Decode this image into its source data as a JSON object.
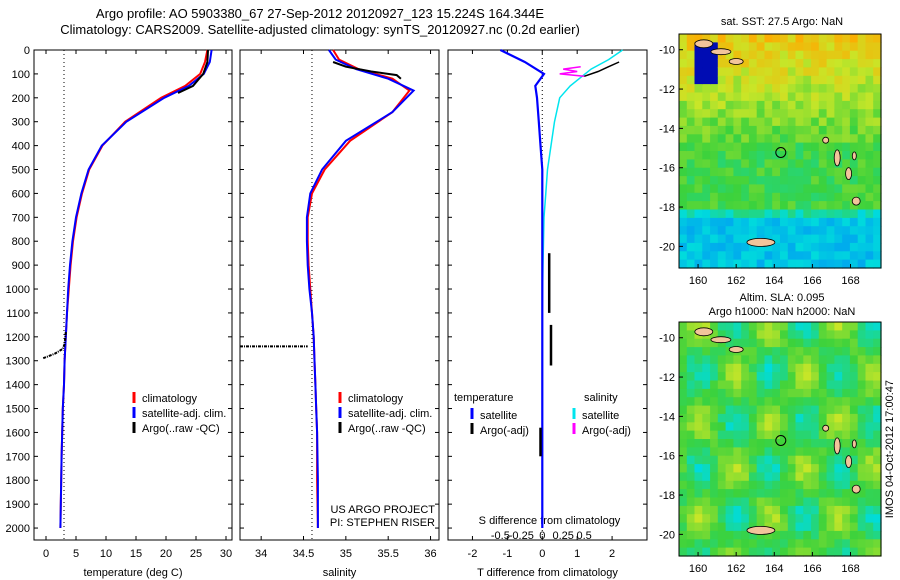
{
  "header": {
    "line1": "Argo profile: AO 5903380_67 27-Sep-2012 20120927_123 15.224S 164.344E",
    "line2": "Climatology: CARS2009. Satellite-adjusted climatology: synTS_20120927.nc (0.2d earlier)"
  },
  "colors": {
    "climatology": "#ff0000",
    "satellite": "#0000ff",
    "argo": "#000000",
    "sal_satellite": "#00e5ee",
    "sal_argo": "#ff00ff"
  },
  "depth_axis": {
    "ticks": [
      0,
      100,
      200,
      300,
      400,
      500,
      600,
      700,
      800,
      900,
      1000,
      1100,
      1200,
      1300,
      1400,
      1500,
      1600,
      1700,
      1800,
      1900,
      2000
    ]
  },
  "chart_data": [
    {
      "type": "line",
      "panel": "temperature",
      "xlabel": "temperature (deg C)",
      "xlim": [
        -2,
        31
      ],
      "ylim": [
        2050,
        0
      ],
      "xticks": [
        0,
        5,
        10,
        15,
        20,
        25,
        30
      ],
      "legend": [
        "climatology",
        "satellite-adj. clim.",
        "Argo(..raw -QC)"
      ],
      "series": [
        {
          "name": "climatology",
          "x": [
            26.9,
            26.5,
            25.7,
            23.2,
            19.2,
            13.2,
            9.4,
            7.2,
            6.0,
            5.1,
            4.5,
            4.1,
            3.8,
            3.5,
            3.3,
            3.1,
            3.0,
            2.8,
            2.7,
            2.6,
            2.5,
            2.4
          ],
          "y": [
            0,
            50,
            100,
            150,
            200,
            300,
            400,
            500,
            600,
            700,
            800,
            900,
            1000,
            1100,
            1200,
            1300,
            1400,
            1500,
            1600,
            1700,
            1850,
            2000
          ]
        },
        {
          "name": "satellite-adj. clim.",
          "x": [
            27.6,
            27.3,
            26.3,
            23.8,
            19.7,
            13.4,
            9.3,
            7.1,
            5.9,
            5.0,
            4.4,
            4.0,
            3.7,
            3.5,
            3.3,
            3.1,
            3.0,
            2.8,
            2.7,
            2.6,
            2.5,
            2.4
          ],
          "y": [
            0,
            50,
            100,
            150,
            200,
            300,
            400,
            500,
            600,
            700,
            800,
            900,
            1000,
            1100,
            1200,
            1300,
            1400,
            1500,
            1600,
            1700,
            1850,
            2000
          ]
        },
        {
          "name": "Argo(..raw -QC)",
          "x": [
            27.0,
            26.9,
            26.2,
            24.5,
            22.0
          ],
          "y": [
            0,
            50,
            100,
            150,
            180
          ]
        },
        {
          "name": "Argo dotted",
          "x": [
            3.3,
            3.1,
            2.8,
            1.5,
            -0.5
          ],
          "y": [
            1180,
            1230,
            1250,
            1270,
            1290
          ]
        }
      ],
      "reference_x": 3.0
    },
    {
      "type": "line",
      "panel": "salinity",
      "xlabel": "salinity",
      "xlim": [
        33.75,
        36.1
      ],
      "ylim": [
        2050,
        0
      ],
      "xticks": [
        34,
        34.5,
        35,
        35.5,
        36
      ],
      "legend": [
        "climatology",
        "satellite-adj. clim.",
        "Argo(..raw -QC)"
      ],
      "notes": [
        "US ARGO PROJECT",
        "PI: STEPHEN RISER"
      ],
      "series": [
        {
          "name": "climatology",
          "x": [
            34.85,
            34.92,
            35.15,
            35.55,
            35.75,
            35.55,
            35.05,
            34.75,
            34.6,
            34.55,
            34.55,
            34.56,
            34.58,
            34.6,
            34.62,
            34.63,
            34.64,
            34.65,
            34.66,
            34.66,
            34.67
          ],
          "y": [
            0,
            40,
            80,
            120,
            170,
            260,
            380,
            500,
            600,
            700,
            800,
            900,
            1000,
            1100,
            1200,
            1300,
            1400,
            1500,
            1600,
            1800,
            2000
          ]
        },
        {
          "name": "satellite-adj. clim.",
          "x": [
            34.8,
            34.88,
            35.12,
            35.5,
            35.8,
            35.55,
            35.0,
            34.72,
            34.58,
            34.54,
            34.54,
            34.55,
            34.57,
            34.6,
            34.62,
            34.63,
            34.64,
            34.65,
            34.66,
            34.67,
            34.67
          ],
          "y": [
            0,
            40,
            80,
            120,
            170,
            260,
            380,
            500,
            600,
            700,
            800,
            900,
            1000,
            1100,
            1200,
            1300,
            1400,
            1500,
            1600,
            1800,
            2000
          ]
        },
        {
          "name": "Argo(..raw -QC)",
          "x": [
            34.85,
            35.0,
            35.3,
            35.6,
            35.65
          ],
          "y": [
            50,
            70,
            90,
            105,
            120
          ]
        },
        {
          "name": "Argo dotted",
          "x": [
            33.75,
            34.0,
            34.3,
            34.55
          ],
          "y": [
            1240,
            1240,
            1240,
            1240
          ]
        }
      ],
      "reference_x": 34.6
    },
    {
      "type": "line",
      "panel": "difference",
      "xlabel": "T difference from climatology",
      "xlabel2": "S difference from climatology",
      "xlim": [
        -2.7,
        3.0
      ],
      "ylim": [
        2050,
        0
      ],
      "xticks": [
        -2,
        -1,
        0,
        1,
        2
      ],
      "s_ticks": [
        "-0.5",
        "-0.25",
        "0",
        "0.25",
        "0.5"
      ],
      "legend_temperature": "temperature",
      "legend_salinity": "salinity",
      "legend_items": [
        "satellite",
        "Argo(-adj)",
        "satellite",
        "Argo(-adj)"
      ],
      "series": [
        {
          "name": "satellite",
          "x": [
            2.3,
            1.9,
            1.4,
            0.8,
            0.5,
            0.35,
            0.25,
            0.15,
            0.1,
            0.05,
            0.02,
            0.0,
            0.0,
            0.0,
            0.0,
            0.0
          ],
          "y": [
            0,
            40,
            80,
            150,
            200,
            300,
            400,
            500,
            600,
            700,
            900,
            1100,
            1300,
            1500,
            1700,
            2000
          ]
        },
        {
          "name": "satellite",
          "x": [
            -1.2,
            -0.5,
            0.05,
            -0.2,
            -0.15,
            -0.1,
            -0.05,
            0.0,
            0.0,
            0.0,
            0.0,
            0.0
          ],
          "y": [
            0,
            50,
            100,
            150,
            200,
            300,
            400,
            500,
            700,
            1000,
            1500,
            2000
          ]
        },
        {
          "name": "Argo(-adj)",
          "x": [
            2.2,
            1.9,
            1.6,
            1.2
          ],
          "y": [
            50,
            70,
            90,
            110
          ]
        },
        {
          "name": "Argo(-adj)",
          "x": [
            1.1,
            0.6,
            1.0,
            0.5,
            1.2
          ],
          "y": [
            70,
            80,
            90,
            100,
            110
          ]
        },
        {
          "name": "Argo(-adj)",
          "x": [
            0.2,
            0.2
          ],
          "y": [
            850,
            1100
          ]
        },
        {
          "name": "Argo(-adj)",
          "x": [
            0.25,
            0.25
          ],
          "y": [
            1150,
            1320
          ]
        },
        {
          "name": "Argo(-adj)",
          "x": [
            -0.05,
            -0.05
          ],
          "y": [
            1580,
            1700
          ]
        }
      ]
    }
  ],
  "maps": [
    {
      "name": "sst",
      "title": "sat. SST: 27.5 Argo: NaN",
      "subtitle": "",
      "xticks": [
        "160",
        "162",
        "164",
        "166",
        "168"
      ],
      "yticks": [
        "-10",
        "-12",
        "-14",
        "-16",
        "-18",
        "-20"
      ]
    },
    {
      "name": "sla",
      "title": "Altim. SLA: 0.095",
      "subtitle": "Argo h1000: NaN h2000: NaN",
      "xticks": [
        "160",
        "162",
        "164",
        "166",
        "168"
      ],
      "yticks": [
        "-10",
        "-12",
        "-14",
        "-16",
        "-18",
        "-20"
      ]
    }
  ],
  "stamp": "IMOS 04-Oct-2012 17:00:47"
}
